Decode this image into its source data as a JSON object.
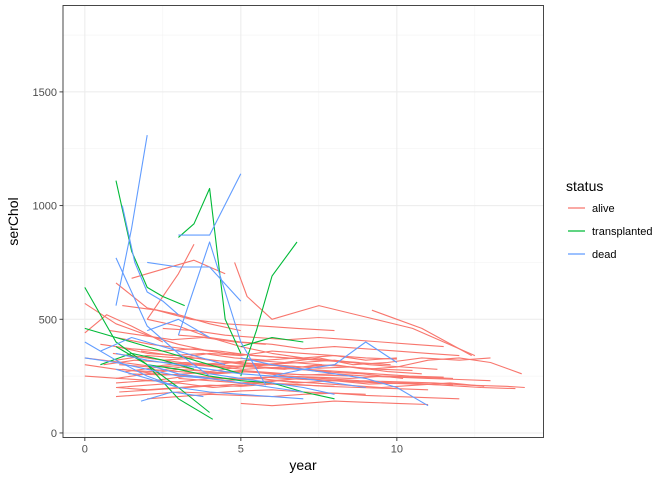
{
  "chart_data": {
    "type": "line",
    "xlabel": "year",
    "ylabel": "serChol",
    "xlim": [
      -0.7,
      14.7
    ],
    "ylim": [
      -20,
      1880
    ],
    "x_ticks": [
      0,
      5,
      10
    ],
    "y_ticks": [
      0,
      500,
      1000,
      1500
    ],
    "grid": true,
    "legend": {
      "title": "status",
      "position": "right",
      "entries": [
        "alive",
        "transplanted",
        "dead"
      ]
    },
    "colors": {
      "alive": "#F8766D",
      "transplanted": "#00BA38",
      "dead": "#619CFF"
    },
    "series": [
      {
        "status": "alive",
        "x": [
          0,
          1,
          2,
          3,
          4
        ],
        "y": [
          570,
          480,
          430,
          390,
          360
        ]
      },
      {
        "status": "alive",
        "x": [
          0,
          0.7,
          1.5,
          2.5
        ],
        "y": [
          440,
          520,
          470,
          400
        ]
      },
      {
        "status": "alive",
        "x": [
          0,
          1.2,
          2.3,
          3.4,
          5.1,
          6.3,
          7.5,
          8.9,
          10.2
        ],
        "y": [
          330,
          310,
          290,
          300,
          280,
          290,
          270,
          260,
          240
        ]
      },
      {
        "status": "alive",
        "x": [
          0,
          1,
          2.1,
          3.1,
          4.2,
          5.3,
          6.5,
          7.6,
          8.8,
          10,
          11.2,
          12.3,
          13.5,
          14.1
        ],
        "y": [
          300,
          280,
          270,
          290,
          260,
          270,
          250,
          240,
          230,
          225,
          220,
          210,
          205,
          200
        ]
      },
      {
        "status": "alive",
        "x": [
          0,
          1.1,
          2.2,
          3.3,
          4.5,
          5.6,
          6.8,
          8,
          9.1,
          10.3,
          11.5,
          12.7,
          13.8
        ],
        "y": [
          250,
          240,
          230,
          250,
          230,
          240,
          220,
          230,
          215,
          220,
          210,
          200,
          195
        ]
      },
      {
        "status": "alive",
        "x": [
          1,
          2,
          3,
          4,
          5,
          6,
          7,
          8,
          9,
          10,
          11,
          12,
          13,
          14
        ],
        "y": [
          380,
          350,
          340,
          320,
          310,
          300,
          290,
          300,
          280,
          290,
          320,
          330,
          310,
          260
        ]
      },
      {
        "status": "alive",
        "x": [
          1.1,
          2.1,
          3.2,
          4.2,
          5.3,
          6.4,
          7.5,
          8.6,
          9.7,
          10.8,
          12,
          13
        ],
        "y": [
          300,
          290,
          310,
          300,
          320,
          310,
          330,
          300,
          310,
          330,
          320,
          330
        ]
      },
      {
        "status": "alive",
        "x": [
          1,
          2,
          3,
          4.1,
          5.1,
          6.2,
          7.3,
          8.4,
          9.5,
          10.6,
          11.7,
          12.8
        ],
        "y": [
          200,
          210,
          220,
          200,
          210,
          230,
          220,
          210,
          200,
          210,
          220,
          205
        ]
      },
      {
        "status": "alive",
        "x": [
          1.2,
          2.3,
          3.5,
          4.6,
          5.8,
          7,
          8.2,
          9.4,
          10.6,
          11.8
        ],
        "y": [
          280,
          260,
          250,
          240,
          245,
          235,
          230,
          220,
          215,
          210
        ]
      },
      {
        "status": "alive",
        "x": [
          1,
          2,
          3,
          4,
          5,
          6,
          7.1,
          8.2,
          9.3,
          10.4,
          11.5
        ],
        "y": [
          240,
          260,
          280,
          270,
          290,
          300,
          280,
          270,
          260,
          250,
          245
        ]
      },
      {
        "status": "alive",
        "x": [
          0.9,
          2,
          3.1,
          4.2,
          5.3,
          6.4,
          7.5,
          8.6,
          9.7,
          10.8
        ],
        "y": [
          350,
          330,
          310,
          300,
          290,
          280,
          300,
          290,
          270,
          260
        ]
      },
      {
        "status": "alive",
        "x": [
          1,
          2.1,
          3.2,
          4.3,
          5.4,
          6.5,
          7.6,
          8.7,
          9.8
        ],
        "y": [
          420,
          390,
          370,
          360,
          340,
          330,
          320,
          310,
          300
        ]
      },
      {
        "status": "alive",
        "x": [
          1.1,
          2.2,
          3.3,
          4.4,
          5.5,
          6.6,
          7.7,
          8.8,
          9.9,
          11
        ],
        "y": [
          180,
          190,
          200,
          210,
          220,
          215,
          205,
          200,
          195,
          190
        ]
      },
      {
        "status": "alive",
        "x": [
          1,
          2,
          3,
          4,
          5,
          6,
          7,
          8,
          9
        ],
        "y": [
          160,
          170,
          180,
          175,
          185,
          190,
          180,
          175,
          170
        ]
      },
      {
        "status": "alive",
        "x": [
          1.3,
          2.4,
          3.5,
          4.6,
          5.7,
          6.8,
          7.9
        ],
        "y": [
          270,
          290,
          300,
          310,
          290,
          280,
          270
        ]
      },
      {
        "status": "alive",
        "x": [
          1.5,
          2.5,
          3.6,
          4.7,
          5.8,
          6.9,
          8,
          9.1,
          10.2,
          11.3
        ],
        "y": [
          340,
          320,
          330,
          310,
          300,
          310,
          320,
          300,
          290,
          280
        ]
      },
      {
        "status": "alive",
        "x": [
          1,
          2,
          3,
          4.1,
          5.2,
          6.3,
          7.4,
          8.5,
          9.6,
          10.7,
          11.8
        ],
        "y": [
          220,
          230,
          225,
          240,
          235,
          250,
          245,
          240,
          250,
          245,
          240
        ]
      },
      {
        "status": "alive",
        "x": [
          2,
          3,
          4,
          5,
          6,
          7,
          8,
          9,
          10
        ],
        "y": [
          500,
          470,
          420,
          380,
          350,
          330,
          340,
          320,
          330
        ]
      },
      {
        "status": "alive",
        "x": [
          1.5,
          2.5,
          3.5,
          4.5
        ],
        "y": [
          680,
          720,
          760,
          700
        ]
      },
      {
        "status": "alive",
        "x": [
          1,
          2,
          3,
          4,
          5
        ],
        "y": [
          660,
          550,
          520,
          480,
          450
        ]
      },
      {
        "status": "alive",
        "x": [
          1.2,
          2.3,
          3.4,
          4.5,
          5.7,
          6.8,
          8
        ],
        "y": [
          560,
          540,
          500,
          480,
          470,
          460,
          450
        ]
      },
      {
        "status": "alive",
        "x": [
          2,
          3,
          3.5
        ],
        "y": [
          500,
          700,
          830
        ]
      },
      {
        "status": "alive",
        "x": [
          4.8,
          5.2,
          6,
          7.5,
          9,
          10.5,
          12.5
        ],
        "y": [
          750,
          600,
          500,
          560,
          510,
          460,
          340
        ]
      },
      {
        "status": "alive",
        "x": [
          2.5,
          3.5,
          4.5,
          5.5,
          6.5,
          7.5,
          8.5,
          9.5,
          10.5,
          11.5
        ],
        "y": [
          460,
          450,
          430,
          420,
          410,
          420,
          410,
          400,
          390,
          380
        ]
      },
      {
        "status": "alive",
        "x": [
          9.2,
          10,
          10.8,
          11.6,
          12.4
        ],
        "y": [
          540,
          500,
          460,
          400,
          340
        ]
      },
      {
        "status": "alive",
        "x": [
          3,
          4,
          5,
          6,
          7,
          8,
          9,
          10,
          11,
          12
        ],
        "y": [
          430,
          420,
          400,
          390,
          370,
          380,
          370,
          360,
          350,
          340
        ]
      },
      {
        "status": "alive",
        "x": [
          0.5,
          1.5,
          2.5,
          3.5,
          4.5,
          5.5,
          6.5,
          7.5,
          8.5
        ],
        "y": [
          390,
          370,
          360,
          370,
          350,
          340,
          330,
          320,
          310
        ]
      },
      {
        "status": "alive",
        "x": [
          2,
          3,
          4,
          5,
          6,
          7,
          8,
          9,
          10,
          11,
          12
        ],
        "y": [
          150,
          160,
          170,
          165,
          160,
          170,
          175,
          165,
          160,
          155,
          150
        ]
      },
      {
        "status": "alive",
        "x": [
          5,
          6,
          7,
          8,
          9,
          10,
          11
        ],
        "y": [
          130,
          120,
          130,
          140,
          135,
          130,
          125
        ]
      },
      {
        "status": "alive",
        "x": [
          1,
          2,
          3,
          4,
          5,
          6,
          7,
          8,
          9,
          10
        ],
        "y": [
          320,
          340,
          330,
          350,
          340,
          360,
          350,
          340,
          330,
          325
        ]
      },
      {
        "status": "alive",
        "x": [
          1.4,
          2.6,
          3.8,
          5,
          6.2,
          7.4,
          8.6
        ],
        "y": [
          260,
          255,
          265,
          270,
          260,
          255,
          250
        ]
      },
      {
        "status": "alive",
        "x": [
          0.6,
          1.6,
          2.6,
          3.6,
          4.6,
          5.6,
          6.6,
          7.6
        ],
        "y": [
          300,
          320,
          310,
          300,
          290,
          300,
          310,
          300
        ]
      },
      {
        "status": "alive",
        "x": [
          2,
          3,
          4,
          5,
          6,
          7,
          8,
          9,
          10,
          11,
          12,
          13
        ],
        "y": [
          280,
          270,
          260,
          275,
          265,
          255,
          260,
          250,
          245,
          240,
          235,
          230
        ]
      },
      {
        "status": "alive",
        "x": [
          1,
          2,
          3,
          4,
          5,
          6,
          7,
          8
        ],
        "y": [
          200,
          190,
          200,
          210,
          205,
          215,
          210,
          205
        ]
      },
      {
        "status": "alive",
        "x": [
          3,
          4,
          5,
          6,
          7,
          8,
          9,
          10,
          11
        ],
        "y": [
          240,
          230,
          220,
          230,
          240,
          230,
          225,
          220,
          215
        ]
      },
      {
        "status": "alive",
        "x": [
          1.8,
          2.8,
          3.8,
          4.8,
          5.8,
          6.8,
          7.8,
          8.8
        ],
        "y": [
          360,
          340,
          350,
          330,
          320,
          330,
          320,
          310
        ]
      },
      {
        "status": "alive",
        "x": [
          0.8,
          1.8,
          2.8,
          3.8,
          4.8,
          5.8
        ],
        "y": [
          450,
          430,
          410,
          420,
          400,
          390
        ]
      },
      {
        "status": "alive",
        "x": [
          2.5,
          3.5,
          4.5,
          5.5,
          6.5,
          7.5,
          8.5,
          9.5,
          10.5
        ],
        "y": [
          310,
          300,
          290,
          300,
          295,
          285,
          290,
          280,
          275
        ]
      },
      {
        "status": "transplanted",
        "x": [
          0,
          1,
          2,
          3,
          4.1
        ],
        "y": [
          640,
          400,
          300,
          150,
          60
        ]
      },
      {
        "status": "transplanted",
        "x": [
          1,
          1.5,
          2,
          2.5,
          3.2
        ],
        "y": [
          1110,
          800,
          640,
          600,
          560
        ]
      },
      {
        "status": "transplanted",
        "x": [
          3,
          3.5,
          4,
          4.5,
          5
        ],
        "y": [
          860,
          920,
          1075,
          500,
          350
        ]
      },
      {
        "status": "transplanted",
        "x": [
          5,
          5.5,
          6,
          6.8
        ],
        "y": [
          250,
          450,
          690,
          840
        ]
      },
      {
        "status": "transplanted",
        "x": [
          0,
          1,
          2,
          3,
          4,
          5
        ],
        "y": [
          460,
          420,
          380,
          340,
          300,
          260
        ]
      },
      {
        "status": "transplanted",
        "x": [
          1,
          2,
          3,
          4
        ],
        "y": [
          380,
          300,
          200,
          90
        ]
      },
      {
        "status": "transplanted",
        "x": [
          2,
          3,
          4,
          5,
          6,
          7,
          8
        ],
        "y": [
          300,
          280,
          250,
          230,
          220,
          180,
          150
        ]
      },
      {
        "status": "transplanted",
        "x": [
          0.5,
          1.5,
          2.5,
          3.5
        ],
        "y": [
          300,
          350,
          320,
          280
        ]
      },
      {
        "status": "transplanted",
        "x": [
          5,
          6,
          7
        ],
        "y": [
          380,
          420,
          400
        ]
      },
      {
        "status": "dead",
        "x": [
          1,
          1.5,
          2
        ],
        "y": [
          560,
          900,
          1310
        ]
      },
      {
        "status": "dead",
        "x": [
          3,
          4,
          5
        ],
        "y": [
          870,
          870,
          1140
        ]
      },
      {
        "status": "dead",
        "x": [
          1.2,
          1.6,
          2,
          2.5,
          3
        ],
        "y": [
          1000,
          750,
          620,
          580,
          520
        ]
      },
      {
        "status": "dead",
        "x": [
          2,
          3,
          4,
          5
        ],
        "y": [
          750,
          730,
          730,
          580
        ]
      },
      {
        "status": "dead",
        "x": [
          1,
          2,
          3,
          4
        ],
        "y": [
          770,
          470,
          350,
          250
        ]
      },
      {
        "status": "dead",
        "x": [
          3,
          4,
          5,
          5.8
        ],
        "y": [
          430,
          840,
          400,
          210
        ]
      },
      {
        "status": "dead",
        "x": [
          0,
          1,
          2,
          3
        ],
        "y": [
          400,
          320,
          250,
          200
        ]
      },
      {
        "status": "dead",
        "x": [
          2,
          3,
          4,
          5,
          6,
          7
        ],
        "y": [
          300,
          260,
          240,
          220,
          200,
          180
        ]
      },
      {
        "status": "dead",
        "x": [
          5,
          6,
          7,
          8,
          9,
          10,
          11
        ],
        "y": [
          330,
          300,
          280,
          260,
          240,
          200,
          120
        ]
      },
      {
        "status": "dead",
        "x": [
          0,
          1,
          2,
          3,
          4
        ],
        "y": [
          330,
          310,
          280,
          250,
          240
        ]
      },
      {
        "status": "dead",
        "x": [
          1,
          2,
          3,
          4,
          5,
          6,
          7
        ],
        "y": [
          280,
          240,
          200,
          180,
          170,
          160,
          150
        ]
      },
      {
        "status": "dead",
        "x": [
          6,
          7,
          8,
          9,
          10
        ],
        "y": [
          250,
          280,
          300,
          400,
          310
        ]
      },
      {
        "status": "dead",
        "x": [
          1,
          2,
          3,
          4,
          5,
          6,
          7,
          8,
          9
        ],
        "y": [
          350,
          320,
          300,
          280,
          260,
          250,
          240,
          220,
          200
        ]
      },
      {
        "status": "dead",
        "x": [
          2,
          3,
          4
        ],
        "y": [
          450,
          500,
          420
        ]
      },
      {
        "status": "dead",
        "x": [
          0.5,
          1.5,
          2.5,
          3.5,
          4.5
        ],
        "y": [
          360,
          420,
          380,
          340,
          300
        ]
      },
      {
        "status": "dead",
        "x": [
          1.8,
          2.8,
          3.8
        ],
        "y": [
          140,
          180,
          160
        ]
      },
      {
        "status": "dead",
        "x": [
          4,
          5,
          6,
          7,
          8
        ],
        "y": [
          260,
          240,
          220,
          200,
          170
        ]
      }
    ]
  }
}
